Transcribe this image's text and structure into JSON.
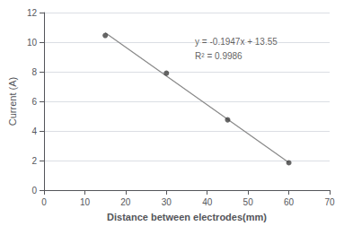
{
  "chart_data": {
    "type": "scatter",
    "xlabel": "Distance between electrodes(mm)",
    "ylabel": "Current (A)",
    "series": [
      {
        "type": "line",
        "color": "#888888",
        "marker": "none",
        "line_style": "solid",
        "x": [
          15,
          60
        ],
        "values": [
          10.6295,
          1.868
        ]
      },
      {
        "type": "scatter",
        "color": "#404040",
        "marker": "circle",
        "x": [
          15,
          30,
          45,
          60
        ],
        "values": [
          10.45,
          7.9,
          4.75,
          1.85
        ]
      }
    ],
    "annotations": [
      {
        "text": "y = -0.1947x + 13.55\nR² = 0.9986",
        "x": 37,
        "y": 10.5
      }
    ],
    "xlim": [
      0,
      70
    ],
    "ylim": [
      0,
      12
    ],
    "xticks": [
      0,
      10,
      20,
      30,
      40,
      50,
      60,
      70
    ],
    "yticks": [
      0,
      2,
      4,
      6,
      8,
      10,
      12
    ],
    "grid": true
  }
}
